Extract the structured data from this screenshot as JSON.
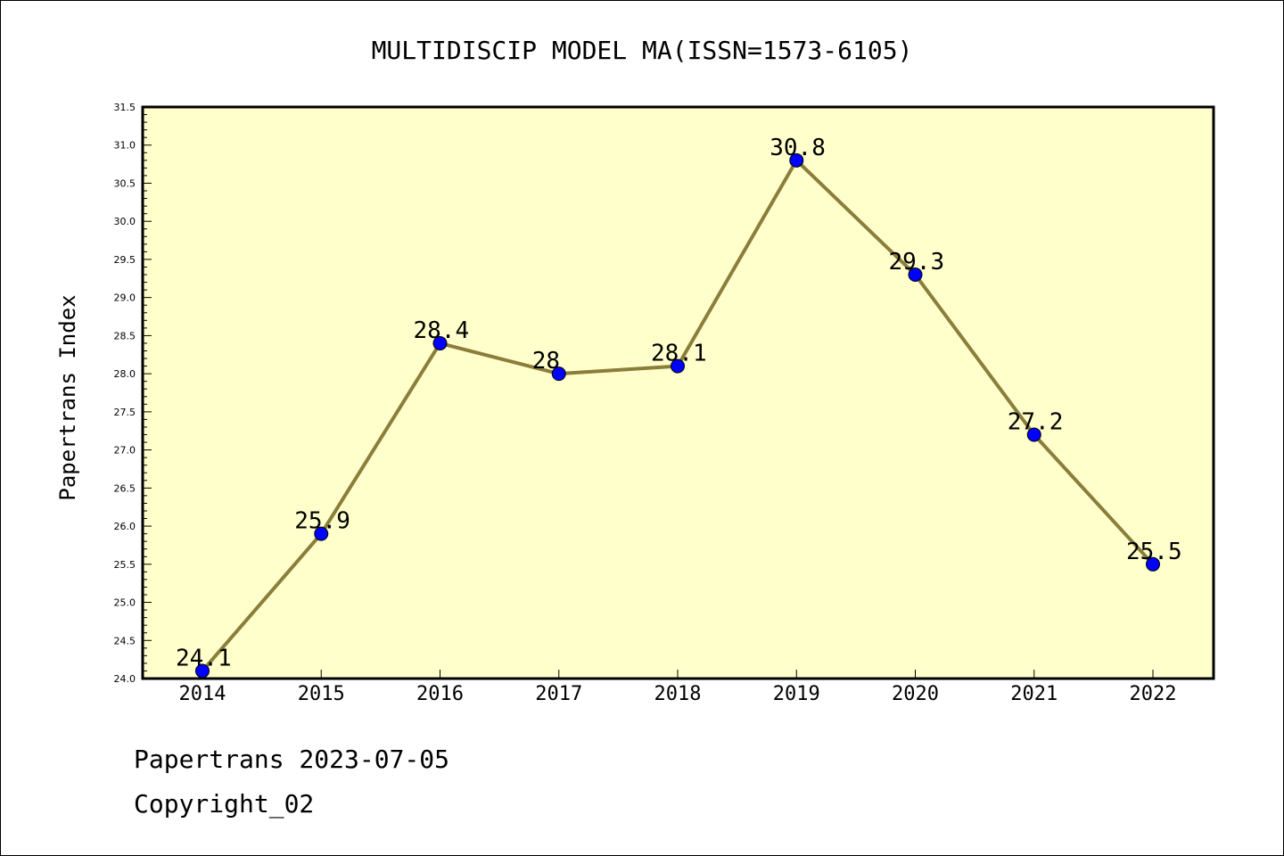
{
  "chart_data": {
    "type": "line",
    "title": "MULTIDISCIP MODEL MA(ISSN=1573-6105)",
    "xlabel": "",
    "ylabel": "Papertrans Index",
    "categories": [
      "2014",
      "2015",
      "2016",
      "2017",
      "2018",
      "2019",
      "2020",
      "2021",
      "2022"
    ],
    "series": [
      {
        "values": [
          24.1,
          25.9,
          28.4,
          28.0,
          28.1,
          30.8,
          29.3,
          27.2,
          25.5
        ],
        "data_labels": [
          "24.1",
          "25.9",
          "28.4",
          "28",
          "28.1",
          "30.8",
          "29.3",
          "27.2",
          "25.5"
        ]
      }
    ],
    "ylim": [
      24.0,
      31.5
    ],
    "yticks": [
      "24.0",
      "24.5",
      "25.0",
      "25.5",
      "26.0",
      "26.5",
      "27.0",
      "27.5",
      "28.0",
      "28.5",
      "29.0",
      "29.5",
      "30.0",
      "30.5",
      "31.0",
      "31.5"
    ],
    "grid": false,
    "colors": {
      "plot_background": "#FFFFCC",
      "line": "#8B7D3A",
      "marker": "#0000FF"
    }
  },
  "footer": {
    "line1": "Papertrans 2023-07-05",
    "line2": "Copyright_02"
  }
}
